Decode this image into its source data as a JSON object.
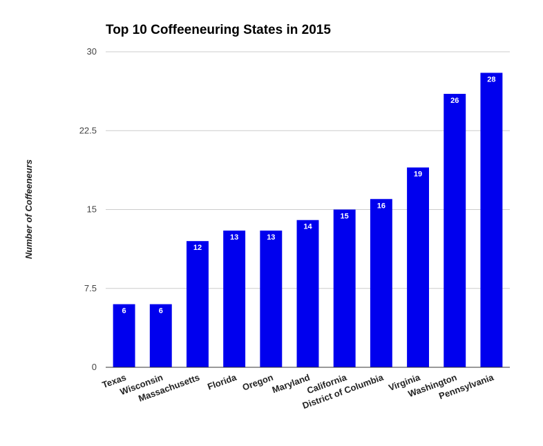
{
  "chart_data": {
    "type": "bar",
    "title": "Top 10 Coffeeneuring States in 2015",
    "xlabel": "",
    "ylabel": "Number of Coffeeneurs",
    "categories": [
      "Texas",
      "Wisconsin",
      "Massachusetts",
      "Florida",
      "Oregon",
      "Maryland",
      "California",
      "District of Columbia",
      "Virginia",
      "Washington",
      "Pennsylvania"
    ],
    "values": [
      6,
      6,
      12,
      13,
      13,
      14,
      15,
      16,
      19,
      26,
      28
    ],
    "value_labels": [
      "6",
      "6",
      "12",
      "13",
      "13",
      "14",
      "15",
      "16",
      "19",
      "26",
      "28"
    ],
    "ylim": [
      0,
      30
    ],
    "yticks": [
      0,
      7.5,
      15,
      22.5,
      30
    ],
    "ytick_labels": [
      "0",
      "7.5",
      "15",
      "22.5",
      "30"
    ],
    "grid": true,
    "legend": "none",
    "bar_color": "#0000EE",
    "gridline_color": "#CCCCCC",
    "axis_color": "#333333"
  }
}
